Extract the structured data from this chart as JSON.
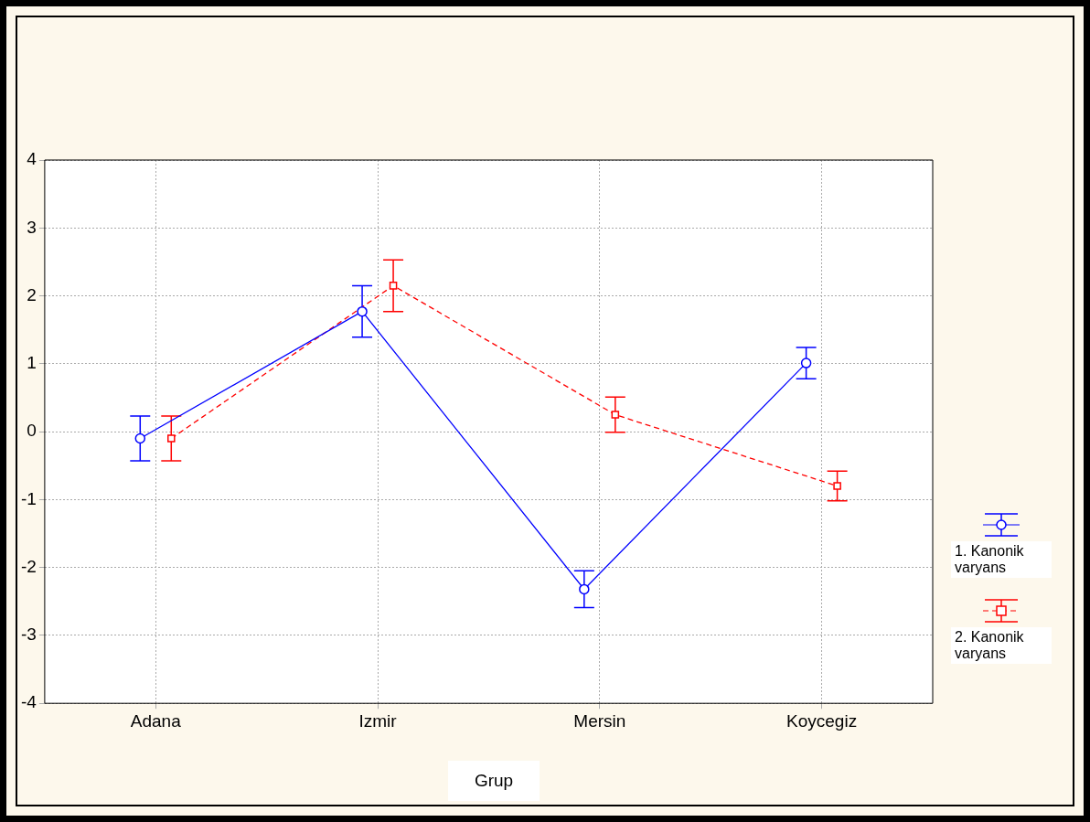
{
  "chart_data": {
    "type": "line",
    "xlabel": "Grup",
    "categories": [
      "Adana",
      "Izmir",
      "Mersin",
      "Koycegiz"
    ],
    "ylim": [
      -4,
      4
    ],
    "yticks": [
      -4,
      -3,
      -2,
      -1,
      0,
      1,
      2,
      3,
      4
    ],
    "grid": true,
    "legend": "bottom right",
    "series": [
      {
        "name": "1. Kanonik varyans",
        "color": "#0000ff",
        "marker": "circle",
        "line_style": "solid",
        "values": [
          -0.1,
          1.77,
          -2.32,
          1.01
        ],
        "errors": [
          0.33,
          0.38,
          0.27,
          0.23
        ]
      },
      {
        "name": "2. Kanonik varyans",
        "color": "#ff0000",
        "marker": "square",
        "line_style": "dashed",
        "values": [
          -0.1,
          2.15,
          0.25,
          -0.8
        ],
        "errors": [
          0.33,
          0.38,
          0.26,
          0.22
        ]
      }
    ]
  }
}
